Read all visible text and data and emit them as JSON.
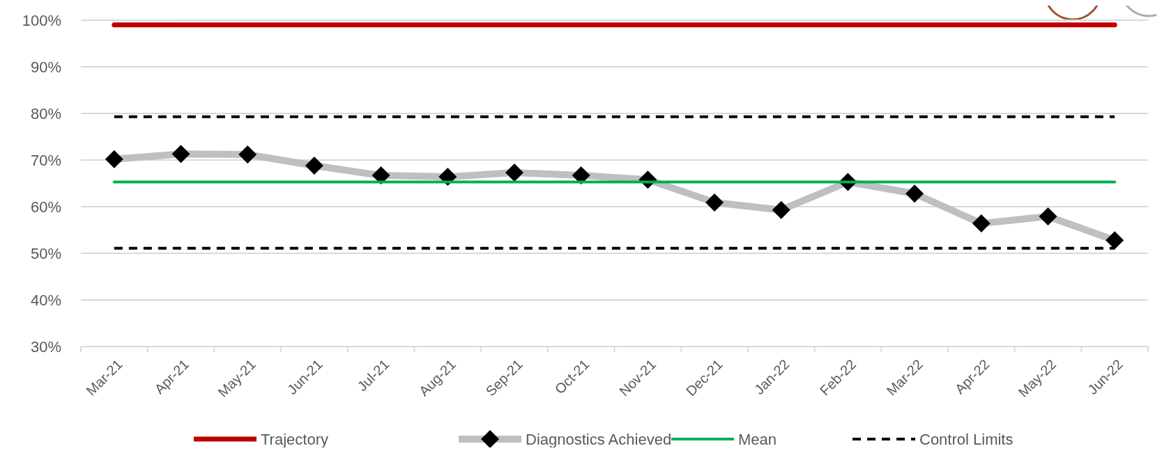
{
  "chart_data": {
    "type": "line",
    "categories": [
      "Mar-21",
      "Apr-21",
      "May-21",
      "Jun-21",
      "Jul-21",
      "Aug-21",
      "Sep-21",
      "Oct-21",
      "Nov-21",
      "Dec-21",
      "Jan-22",
      "Feb-22",
      "Mar-22",
      "Apr-22",
      "May-22",
      "Jun-22"
    ],
    "series": [
      {
        "name": "Trajectory",
        "color": "#c00000",
        "values": [
          99,
          99,
          99,
          99,
          99,
          99,
          99,
          99,
          99,
          99,
          99,
          99,
          99,
          99,
          99,
          99
        ],
        "marker": "none",
        "line_style": "solid"
      },
      {
        "name": "Diagnostics Achieved",
        "color": "#bfbfbf",
        "values": [
          70.2,
          71.3,
          71.2,
          68.8,
          66.7,
          66.4,
          67.3,
          66.7,
          65.8,
          60.9,
          59.3,
          65.3,
          62.8,
          56.4,
          57.9,
          52.8
        ],
        "marker": "diamond",
        "line_style": "solid"
      },
      {
        "name": "Mean",
        "color": "#00b050",
        "values": [
          65.3,
          65.3,
          65.3,
          65.3,
          65.3,
          65.3,
          65.3,
          65.3,
          65.3,
          65.3,
          65.3,
          65.3,
          65.3,
          65.3,
          65.3,
          65.3
        ],
        "marker": "none",
        "line_style": "solid"
      },
      {
        "name": "Control Limits",
        "color": "#000000",
        "values": [
          79.3,
          79.3,
          79.3,
          79.3,
          79.3,
          79.3,
          79.3,
          79.3,
          79.3,
          79.3,
          79.3,
          79.3,
          79.3,
          79.3,
          79.3,
          79.3
        ],
        "marker": "none",
        "line_style": "dashed"
      },
      {
        "color": "#000000",
        "values": [
          51.1,
          51.1,
          51.1,
          51.1,
          51.1,
          51.1,
          51.1,
          51.1,
          51.1,
          51.1,
          51.1,
          51.1,
          51.1,
          51.1,
          51.1,
          51.1
        ],
        "marker": "none",
        "line_style": "dashed"
      }
    ],
    "ylim": [
      30,
      100
    ],
    "yticks": [
      {
        "value": 30,
        "label": "30%"
      },
      {
        "value": 40,
        "label": "40%"
      },
      {
        "value": 50,
        "label": "50%"
      },
      {
        "value": 60,
        "label": "60%"
      },
      {
        "value": 70,
        "label": "70%"
      },
      {
        "value": 80,
        "label": "80%"
      },
      {
        "value": 90,
        "label": "90%"
      },
      {
        "value": 100,
        "label": "100%"
      }
    ],
    "grid": "y",
    "legend": "bottom"
  }
}
